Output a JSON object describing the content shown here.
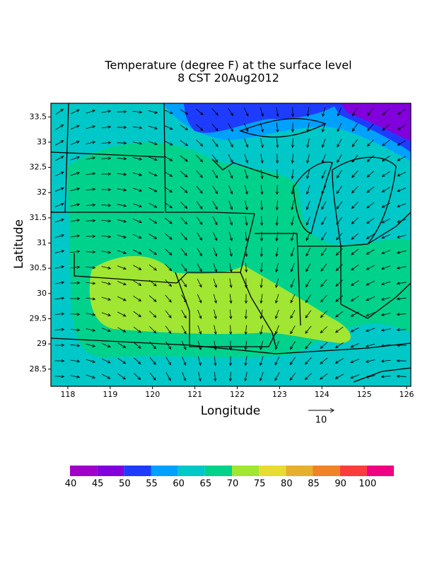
{
  "chart_data": {
    "type": "map",
    "title": [
      "Temperature (degree F) at the surface level",
      "8 CST 20Aug2012"
    ],
    "xlabel": "Longitude",
    "ylabel": "Latitude",
    "xlim": [
      117.6,
      126.1
    ],
    "ylim": [
      28.16,
      33.77
    ],
    "xticks": [
      118,
      119,
      120,
      121,
      122,
      123,
      124,
      125,
      126
    ],
    "yticks": [
      28.5,
      29,
      29.5,
      30,
      30.5,
      31,
      31.5,
      32,
      32.5,
      33,
      33.5
    ],
    "vector_reference": "10",
    "colorbar": {
      "levels": [
        40,
        45,
        50,
        55,
        60,
        65,
        70,
        75,
        80,
        85,
        90,
        100
      ],
      "colors": [
        "#a000c8",
        "#8200dc",
        "#1e3cff",
        "#00a0ff",
        "#00c8c8",
        "#00d28c",
        "#a0e632",
        "#e6dc32",
        "#e6af2d",
        "#f08228",
        "#fa3c3c",
        "#f00082"
      ]
    }
  }
}
